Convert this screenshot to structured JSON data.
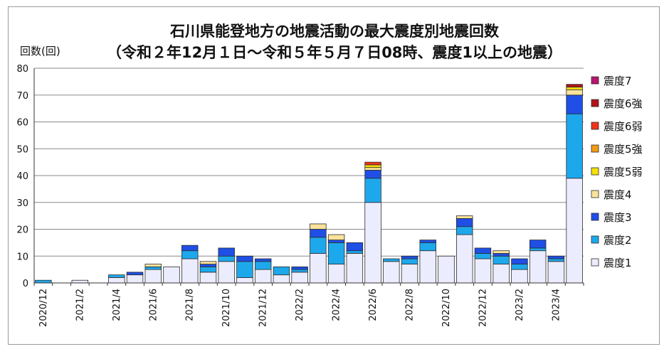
{
  "chart_data": {
    "type": "bar",
    "stacked": true,
    "title": "石川県能登地方の地震活動の最大震度別地震回数",
    "subtitle": "（令和２年12月１日～令和５年５月７日08時、震度1以上の地震）",
    "ylabel": "回数(回)",
    "xlabel": "",
    "ylim": [
      0,
      80
    ],
    "yticks": [
      0,
      10,
      20,
      30,
      40,
      50,
      60,
      70,
      80
    ],
    "grid": true,
    "legend_position": "right",
    "categories": [
      "2020/12",
      "2021/1",
      "2021/2",
      "2021/3",
      "2021/4",
      "2021/5",
      "2021/6",
      "2021/7",
      "2021/8",
      "2021/9",
      "2021/10",
      "2021/11",
      "2021/12",
      "2022/1",
      "2022/2",
      "2022/3",
      "2022/4",
      "2022/5",
      "2022/6",
      "2022/7",
      "2022/8",
      "2022/9",
      "2022/10",
      "2022/11",
      "2022/12",
      "2023/1",
      "2023/2",
      "2023/3",
      "2023/4",
      "2023/5"
    ],
    "tick_labels": [
      "2020/12",
      "2021/2",
      "2021/4",
      "2021/6",
      "2021/8",
      "2021/10",
      "2021/12",
      "2022/2",
      "2022/4",
      "2022/6",
      "2022/8",
      "2022/10",
      "2022/12",
      "2023/2",
      "2023/4"
    ],
    "series": [
      {
        "name": "震度1",
        "color": "#ececff",
        "values": [
          0,
          0,
          1,
          0,
          2,
          3,
          5,
          6,
          9,
          4,
          8,
          2,
          5,
          3,
          4,
          11,
          7,
          11,
          30,
          8,
          7,
          12,
          10,
          18,
          9,
          7,
          5,
          12,
          8,
          39
        ]
      },
      {
        "name": "震度2",
        "color": "#1ea8ec",
        "values": [
          1,
          0,
          0,
          0,
          1,
          0,
          1,
          0,
          3,
          2,
          2,
          6,
          3,
          3,
          1,
          6,
          8,
          1,
          9,
          1,
          2,
          3,
          0,
          3,
          2,
          3,
          2,
          1,
          1,
          24
        ]
      },
      {
        "name": "震度3",
        "color": "#1f4fe6",
        "values": [
          0,
          0,
          0,
          0,
          0,
          1,
          0,
          0,
          2,
          1,
          3,
          2,
          1,
          0,
          1,
          3,
          1,
          3,
          3,
          0,
          1,
          1,
          0,
          3,
          2,
          1,
          2,
          3,
          1,
          7
        ]
      },
      {
        "name": "震度4",
        "color": "#fbe39b",
        "values": [
          0,
          0,
          0,
          0,
          0,
          0,
          1,
          0,
          0,
          1,
          0,
          0,
          0,
          0,
          0,
          2,
          2,
          0,
          1,
          0,
          0,
          0,
          0,
          1,
          0,
          1,
          0,
          0,
          0,
          2
        ]
      },
      {
        "name": "震度5弱",
        "color": "#f5e00a",
        "values": [
          0,
          0,
          0,
          0,
          0,
          0,
          0,
          0,
          0,
          0,
          0,
          0,
          0,
          0,
          0,
          0,
          0,
          0,
          1,
          0,
          0,
          0,
          0,
          0,
          0,
          0,
          0,
          0,
          0,
          1
        ]
      },
      {
        "name": "震度5強",
        "color": "#f39a14",
        "values": [
          0,
          0,
          0,
          0,
          0,
          0,
          0,
          0,
          0,
          0,
          0,
          0,
          0,
          0,
          0,
          0,
          0,
          0,
          0,
          0,
          0,
          0,
          0,
          0,
          0,
          0,
          0,
          0,
          0,
          0
        ]
      },
      {
        "name": "震度6弱",
        "color": "#f0341c",
        "values": [
          0,
          0,
          0,
          0,
          0,
          0,
          0,
          0,
          0,
          0,
          0,
          0,
          0,
          0,
          0,
          0,
          0,
          0,
          1,
          0,
          0,
          0,
          0,
          0,
          0,
          0,
          0,
          0,
          0,
          0
        ]
      },
      {
        "name": "震度6強",
        "color": "#b01318",
        "values": [
          0,
          0,
          0,
          0,
          0,
          0,
          0,
          0,
          0,
          0,
          0,
          0,
          0,
          0,
          0,
          0,
          0,
          0,
          0,
          0,
          0,
          0,
          0,
          0,
          0,
          0,
          0,
          0,
          0,
          1
        ]
      },
      {
        "name": "震度7",
        "color": "#b5176e",
        "values": [
          0,
          0,
          0,
          0,
          0,
          0,
          0,
          0,
          0,
          0,
          0,
          0,
          0,
          0,
          0,
          0,
          0,
          0,
          0,
          0,
          0,
          0,
          0,
          0,
          0,
          0,
          0,
          0,
          0,
          0
        ]
      }
    ]
  }
}
